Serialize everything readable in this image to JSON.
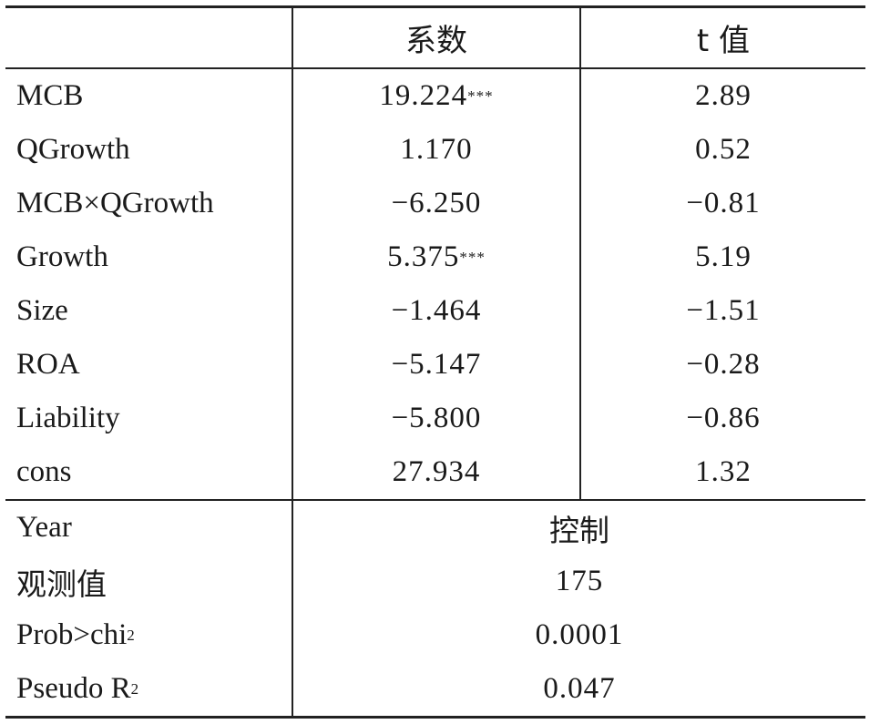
{
  "table": {
    "header": {
      "col1": "",
      "col2": "系数",
      "col3": "t 值"
    },
    "rows": [
      {
        "label": "MCB",
        "coef": "19.224",
        "stars": "***",
        "t": "2.89"
      },
      {
        "label": "QGrowth",
        "coef": "1.170",
        "stars": "",
        "t": "0.52"
      },
      {
        "label": "MCB×QGrowth",
        "coef": "−6.250",
        "stars": "",
        "t": "−0.81"
      },
      {
        "label": "Growth",
        "coef": "5.375",
        "stars": "***",
        "t": "5.19"
      },
      {
        "label": "Size",
        "coef": "−1.464",
        "stars": "",
        "t": "−1.51"
      },
      {
        "label": "ROA",
        "coef": "−5.147",
        "stars": "",
        "t": "−0.28"
      },
      {
        "label": "Liability",
        "coef": "−5.800",
        "stars": "",
        "t": "−0.86"
      },
      {
        "label": "cons",
        "coef": "27.934",
        "stars": "",
        "t": "1.32"
      }
    ],
    "summary": [
      {
        "label": "Year",
        "value": "控制"
      },
      {
        "label": "观测值",
        "value": "175"
      },
      {
        "label": "Prob>chi",
        "label_sup": "2",
        "value": "0.0001"
      },
      {
        "label": "Pseudo R",
        "label_sup": "2",
        "value": "0.047"
      }
    ]
  }
}
